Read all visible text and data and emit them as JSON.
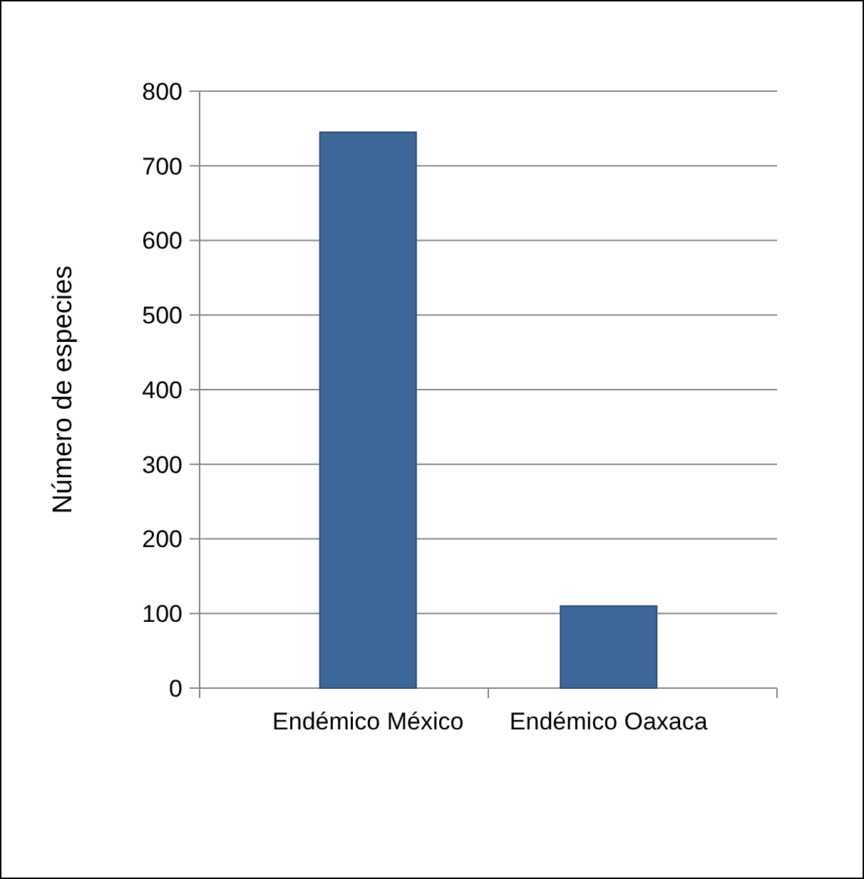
{
  "chart_data": {
    "type": "bar",
    "ylabel": "Número de especies",
    "categories": [
      "Endémico México",
      "Endémico Oaxaca"
    ],
    "values": [
      745,
      110
    ],
    "color": "#3d6699",
    "ylim": [
      0,
      800
    ],
    "yticks": [
      0,
      100,
      200,
      300,
      400,
      500,
      600,
      700,
      800
    ],
    "grid": "y"
  }
}
